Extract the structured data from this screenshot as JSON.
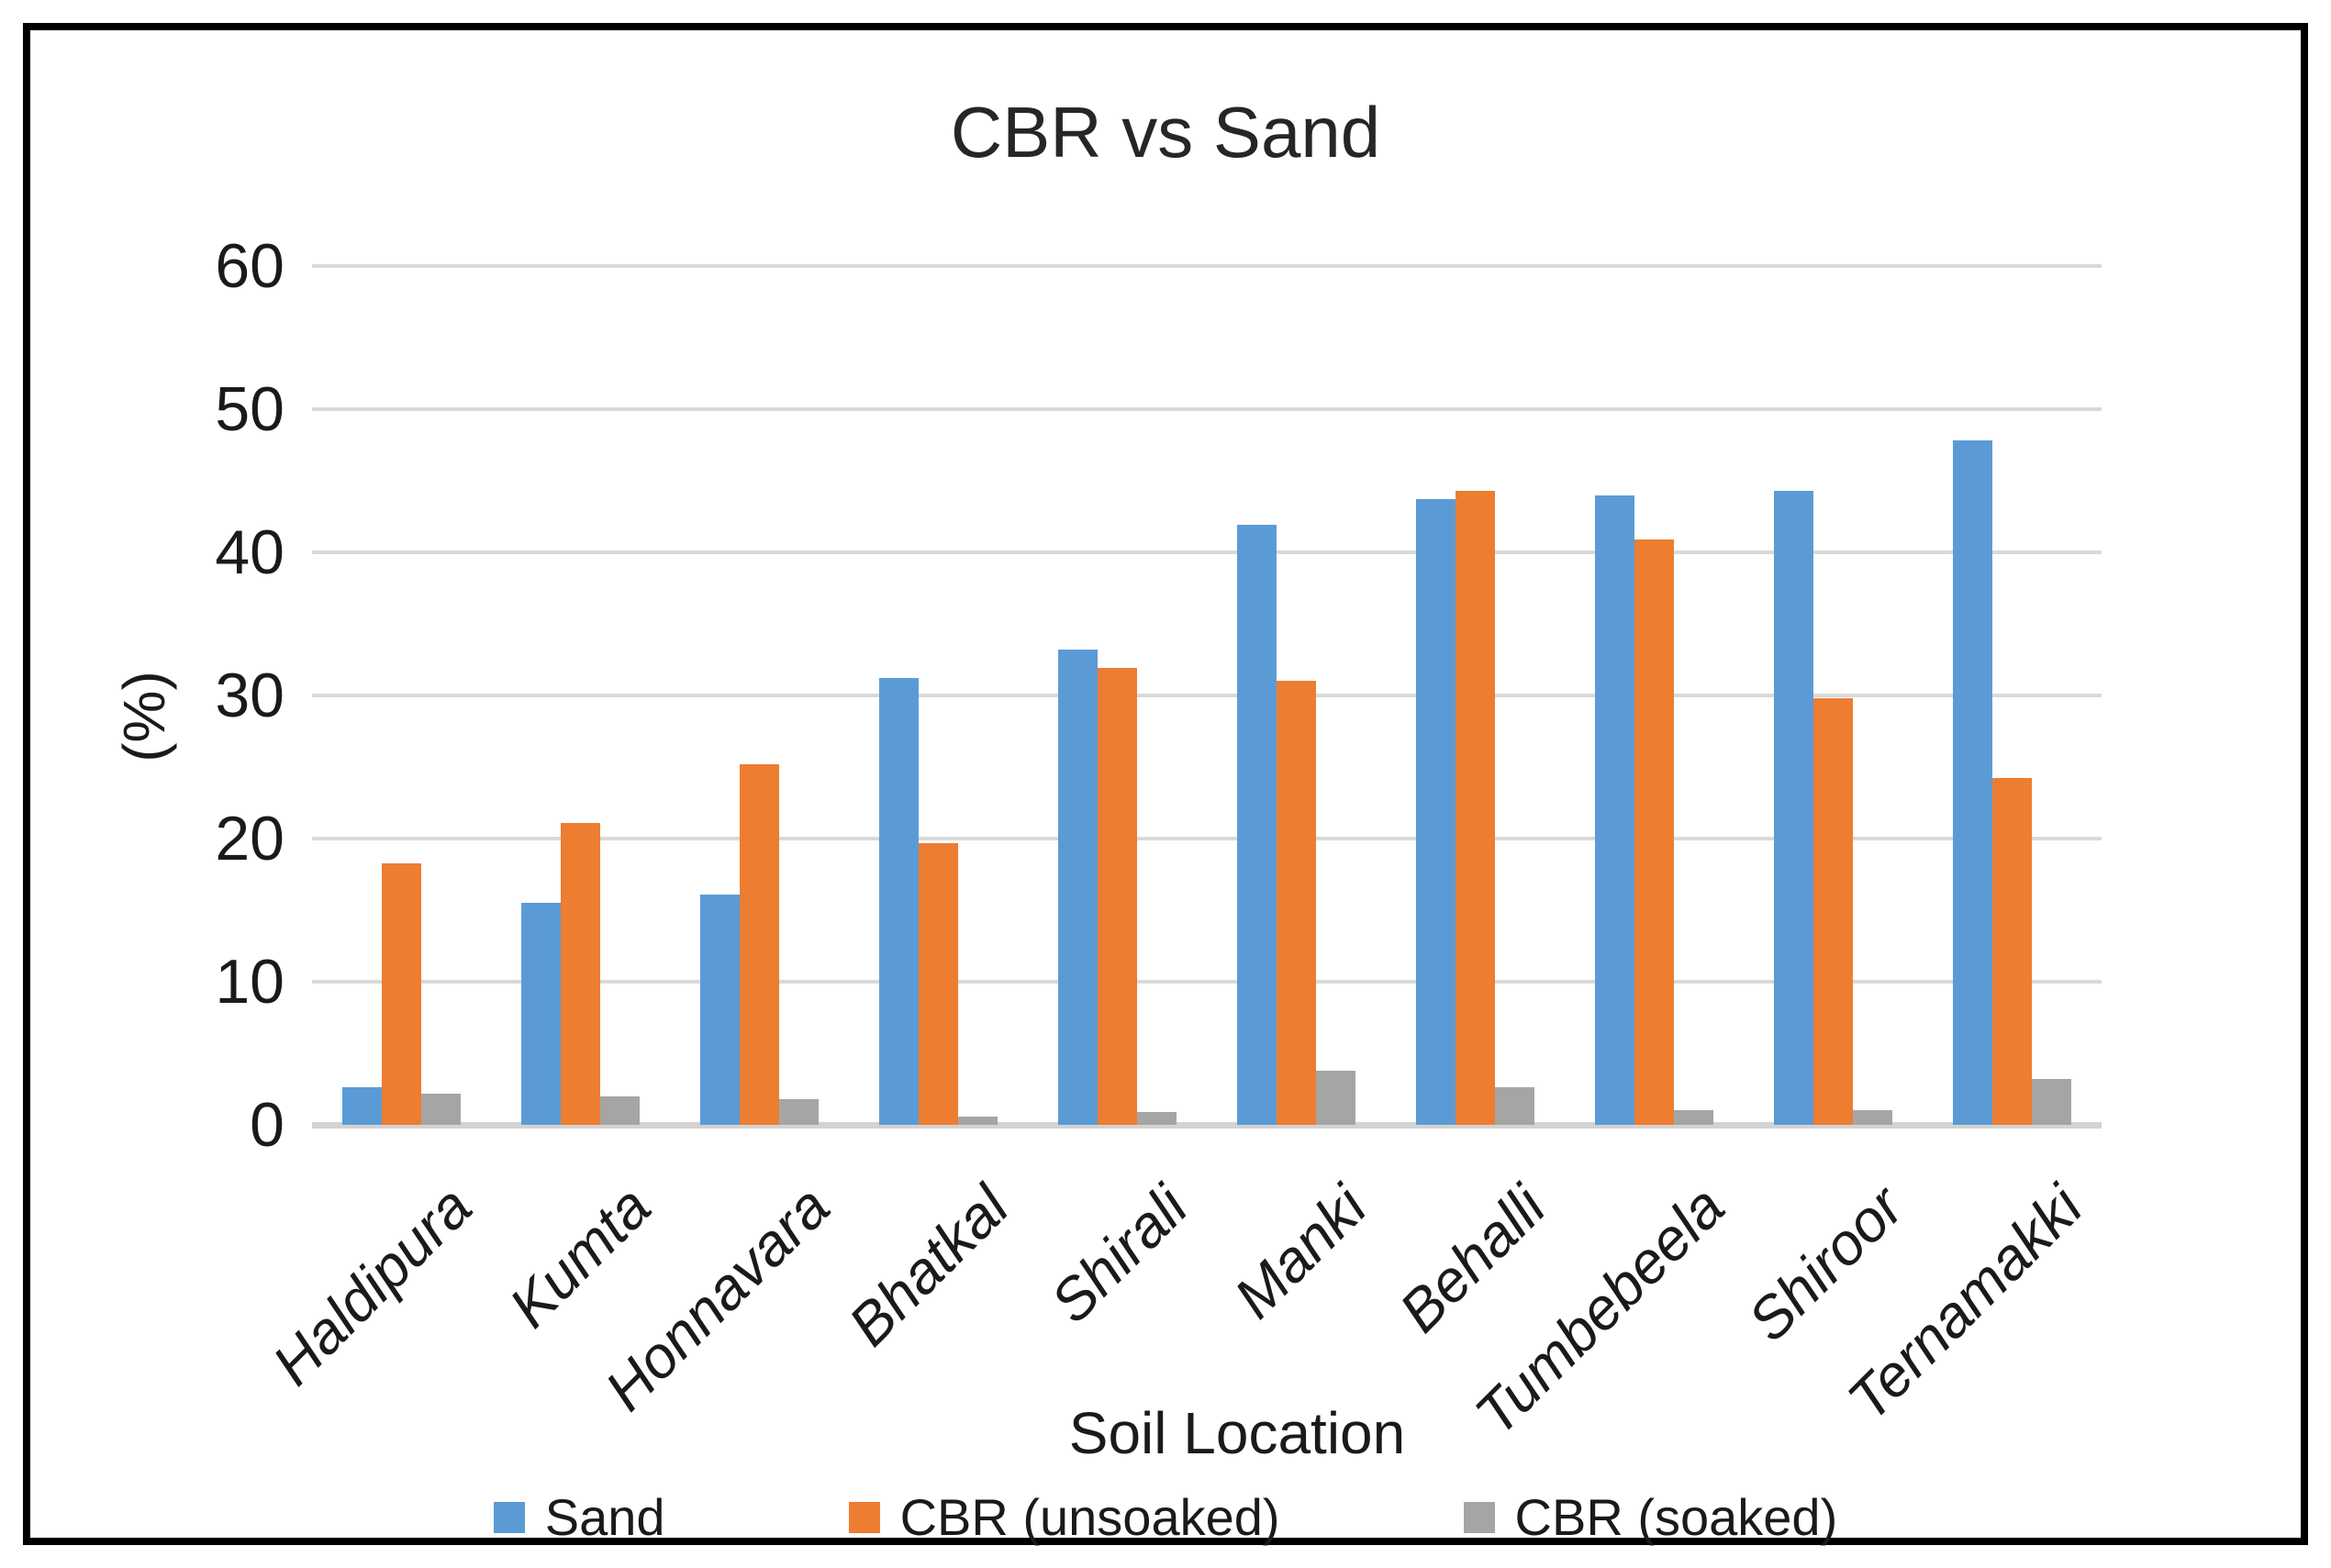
{
  "chart_data": {
    "type": "bar",
    "title": "CBR vs Sand",
    "xlabel": "Soil Location",
    "ylabel": "(%)",
    "ylim": [
      0,
      60
    ],
    "ytick_step": 10,
    "grid": true,
    "legend_position": "bottom",
    "background": "#ffffff",
    "frame_border_color": "#000000",
    "gridline_color": "#d9d9d9",
    "categories": [
      "Haldipura",
      "Kumta",
      "Honnavara",
      "Bhatkal",
      "Shirali",
      "Manki",
      "Behalli",
      "Tumbebeela",
      "Shiroor",
      "Ternamakki"
    ],
    "series": [
      {
        "name": "Sand",
        "color": "#5B9BD5",
        "values": [
          2.6,
          15.5,
          16.1,
          31.2,
          33.2,
          41.9,
          43.7,
          44.0,
          44.3,
          47.8
        ]
      },
      {
        "name": "CBR (unsoaked)",
        "color": "#ED7D31",
        "values": [
          18.3,
          21.1,
          25.2,
          19.7,
          31.9,
          31.0,
          44.3,
          40.9,
          29.8,
          24.2
        ]
      },
      {
        "name": "CBR (soaked)",
        "color": "#A5A5A5",
        "values": [
          2.2,
          2.0,
          1.8,
          0.6,
          0.9,
          3.8,
          2.6,
          1.0,
          1.0,
          3.2
        ]
      }
    ]
  }
}
